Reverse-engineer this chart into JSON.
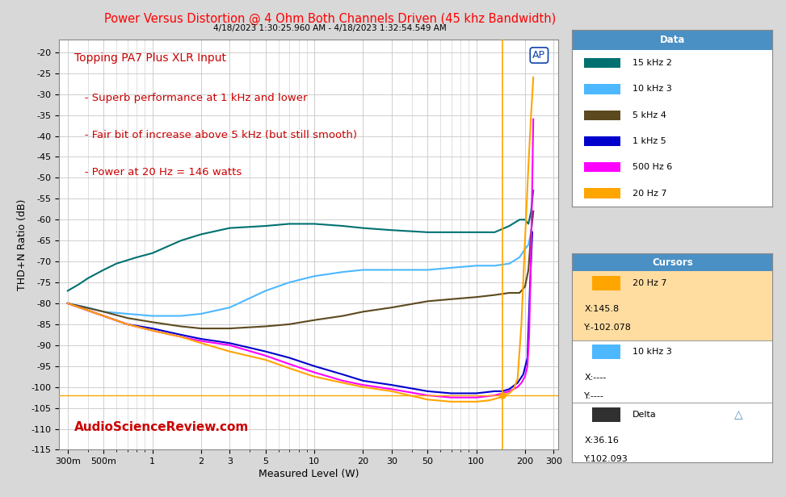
{
  "title": "Power Versus Distortion @ 4 Ohm Both Channels Driven (45 khz Bandwidth)",
  "subtitle": "4/18/2023 1:30:25.960 AM - 4/18/2023 1:32:54.549 AM",
  "xlabel": "Measured Level (W)",
  "ylabel": "THD+N Ratio (dB)",
  "title_color": "#FF0000",
  "bg_color": "#D8D8D8",
  "plot_bg_color": "#FFFFFF",
  "grid_color": "#C8C8C8",
  "annotation_line1": "Topping PA7 Plus XLR Input",
  "annotation_line2": "   - Superb performance at 1 kHz and lower",
  "annotation_line3": "   - Fair bit of increase above 5 kHz (but still smooth)",
  "annotation_line4": "   - Power at 20 Hz = 146 watts",
  "watermark": "AudioScienceReview.com",
  "ap_logo": "AP",
  "ylim": [
    -115,
    -17
  ],
  "yticks": [
    -20,
    -25,
    -30,
    -35,
    -40,
    -45,
    -50,
    -55,
    -60,
    -65,
    -70,
    -75,
    -80,
    -85,
    -90,
    -95,
    -100,
    -105,
    -110,
    -115
  ],
  "xticks_log": [
    0.3,
    0.5,
    1,
    2,
    3,
    5,
    10,
    20,
    30,
    50,
    100,
    200,
    300
  ],
  "xtick_labels": [
    "300m",
    "500m",
    "1",
    "2",
    "3",
    "5",
    "10",
    "20",
    "30",
    "50",
    "100",
    "200",
    "300"
  ],
  "xlim_log": [
    0.265,
    320
  ],
  "legend_title": "Data",
  "legend_items": [
    "15 kHz 2",
    "10 kHz 3",
    "5 kHz 4",
    "1 kHz 5",
    "500 Hz 6",
    "20 Hz 7"
  ],
  "legend_colors": [
    "#007070",
    "#4DB8FF",
    "#5C4A1E",
    "#0000CC",
    "#FF00FF",
    "#FFA500"
  ],
  "cursor_x": 145.8,
  "cursor_y": -102.078,
  "cursor_label_x": "X:145.8",
  "cursor_label_y": "Y:-102.078",
  "cursors_box_title": "Cursors",
  "cursor1_label": "20 Hz 7",
  "cursor1_color": "#FFA500",
  "cursor1_bg": "#FFDDA0",
  "cursor2_label": "10 kHz 3",
  "cursor2_color": "#4DB8FF",
  "cursor2_bg": "#FFFFFF",
  "delta_label": "Delta",
  "delta_x": "X:36.16",
  "delta_y": "Y:102.093",
  "panel_header_color": "#4A90C4",
  "panel_border_color": "#888888",
  "line_15khz": {
    "x": [
      0.3,
      0.35,
      0.4,
      0.5,
      0.6,
      0.8,
      1.0,
      1.5,
      2.0,
      3.0,
      5.0,
      7.0,
      10.0,
      15.0,
      20.0,
      30.0,
      50.0,
      70.0,
      100.0,
      130.0,
      160.0,
      185.0,
      200.0,
      210.0,
      218.0,
      225.0
    ],
    "y": [
      -77,
      -75.5,
      -74,
      -72,
      -70.5,
      -69,
      -68,
      -65,
      -63.5,
      -62,
      -61.5,
      -61,
      -61,
      -61.5,
      -62,
      -62.5,
      -63,
      -63,
      -63,
      -63,
      -61.5,
      -60,
      -60,
      -61,
      -58,
      -53
    ]
  },
  "line_10khz": {
    "x": [
      0.3,
      0.4,
      0.5,
      0.7,
      1.0,
      1.5,
      2.0,
      3.0,
      5.0,
      7.0,
      10.0,
      15.0,
      20.0,
      30.0,
      50.0,
      70.0,
      100.0,
      130.0,
      160.0,
      185.0,
      200.0,
      210.0,
      218.0,
      225.0
    ],
    "y": [
      -80,
      -81,
      -82,
      -82.5,
      -83,
      -83,
      -82.5,
      -81,
      -77,
      -75,
      -73.5,
      -72.5,
      -72,
      -72,
      -72,
      -71.5,
      -71,
      -71,
      -70.5,
      -69,
      -67,
      -66,
      -63,
      -58
    ]
  },
  "line_5khz": {
    "x": [
      0.3,
      0.5,
      0.7,
      1.0,
      1.5,
      2.0,
      3.0,
      5.0,
      7.0,
      10.0,
      15.0,
      20.0,
      30.0,
      50.0,
      70.0,
      100.0,
      130.0,
      160.0,
      185.0,
      200.0,
      210.0,
      218.0,
      225.0
    ],
    "y": [
      -80,
      -82,
      -83.5,
      -84.5,
      -85.5,
      -86,
      -86,
      -85.5,
      -85,
      -84,
      -83,
      -82,
      -81,
      -79.5,
      -79,
      -78.5,
      -78,
      -77.5,
      -77.5,
      -76,
      -72,
      -63,
      -58
    ]
  },
  "line_1khz": {
    "x": [
      0.3,
      0.5,
      0.7,
      1.0,
      1.5,
      2.0,
      3.0,
      5.0,
      7.0,
      10.0,
      15.0,
      20.0,
      30.0,
      50.0,
      70.0,
      100.0,
      130.0,
      145.0,
      160.0,
      180.0,
      195.0,
      207.0,
      215.0,
      222.0
    ],
    "y": [
      -80,
      -83,
      -85,
      -86,
      -87.5,
      -88.5,
      -89.5,
      -91.5,
      -93,
      -95,
      -97,
      -98.5,
      -99.5,
      -101,
      -101.5,
      -101.5,
      -101,
      -101,
      -100.5,
      -99,
      -97,
      -93,
      -75,
      -63
    ]
  },
  "line_500hz": {
    "x": [
      0.3,
      0.5,
      0.7,
      1.0,
      1.5,
      2.0,
      3.0,
      5.0,
      7.0,
      10.0,
      15.0,
      20.0,
      30.0,
      50.0,
      70.0,
      100.0,
      130.0,
      145.0,
      160.0,
      180.0,
      190.0,
      200.0,
      207.0,
      212.0,
      218.0,
      225.0
    ],
    "y": [
      -80,
      -83,
      -85,
      -86.5,
      -88,
      -89,
      -90,
      -92.5,
      -94.5,
      -96.5,
      -98.5,
      -99.5,
      -100.5,
      -102,
      -102.5,
      -102.5,
      -102,
      -101.5,
      -101,
      -100,
      -99,
      -97.5,
      -95,
      -88,
      -68,
      -36
    ]
  },
  "line_20hz": {
    "x": [
      0.3,
      0.5,
      0.7,
      1.0,
      1.5,
      2.0,
      3.0,
      5.0,
      7.0,
      10.0,
      15.0,
      20.0,
      30.0,
      50.0,
      70.0,
      100.0,
      120.0,
      140.0,
      145.8,
      160.0,
      170.0,
      180.0,
      190.0,
      200.0,
      210.0,
      218.0,
      225.0
    ],
    "y": [
      -80,
      -83,
      -85,
      -86.5,
      -88,
      -89.5,
      -91.5,
      -93.5,
      -95.5,
      -97.5,
      -99,
      -100,
      -101,
      -103,
      -103.5,
      -103.5,
      -103.2,
      -102.5,
      -102.0,
      -101.5,
      -100.5,
      -98,
      -85,
      -65,
      -47,
      -35,
      -26
    ]
  }
}
